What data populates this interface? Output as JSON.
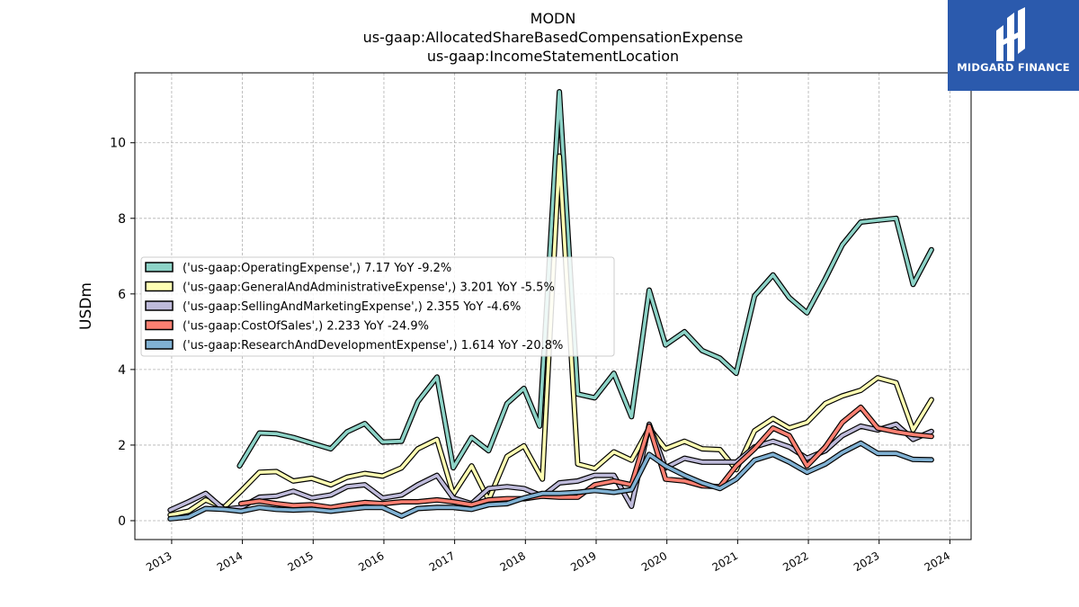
{
  "logo": {
    "text": "MIDGARD FINANCE"
  },
  "chart_data": {
    "type": "line",
    "title_lines": [
      "MODN",
      "us-gaap:AllocatedShareBasedCompensationExpense",
      "us-gaap:IncomeStatementLocation"
    ],
    "ylabel": "USDm",
    "xlim": [
      2012.48,
      2024.3
    ],
    "ylim": [
      -0.5,
      11.85
    ],
    "yticks": [
      0,
      2,
      4,
      6,
      8,
      10
    ],
    "xticks": [
      2013,
      2014,
      2015,
      2016,
      2017,
      2018,
      2019,
      2020,
      2021,
      2022,
      2023,
      2024
    ],
    "grid": true,
    "legend_position": "center-left",
    "series": [
      {
        "name": "('us-gaap:OperatingExpense',) 7.17 YoY -9.2%",
        "color": "#8dd3c7",
        "points": [
          [
            2013.96,
            1.45
          ],
          [
            2014.24,
            2.32
          ],
          [
            2014.48,
            2.3
          ],
          [
            2014.72,
            2.2
          ],
          [
            2014.98,
            2.05
          ],
          [
            2015.25,
            1.9
          ],
          [
            2015.48,
            2.35
          ],
          [
            2015.73,
            2.57
          ],
          [
            2015.98,
            2.08
          ],
          [
            2016.25,
            2.1
          ],
          [
            2016.48,
            3.15
          ],
          [
            2016.75,
            3.8
          ],
          [
            2016.98,
            1.4
          ],
          [
            2017.24,
            2.2
          ],
          [
            2017.48,
            1.85
          ],
          [
            2017.74,
            3.1
          ],
          [
            2017.98,
            3.5
          ],
          [
            2018.2,
            2.5
          ],
          [
            2018.48,
            11.35
          ],
          [
            2018.74,
            3.35
          ],
          [
            2018.98,
            3.25
          ],
          [
            2019.25,
            3.9
          ],
          [
            2019.5,
            2.75
          ],
          [
            2019.75,
            6.1
          ],
          [
            2019.98,
            4.65
          ],
          [
            2020.25,
            5.0
          ],
          [
            2020.5,
            4.5
          ],
          [
            2020.75,
            4.3
          ],
          [
            2020.98,
            3.9
          ],
          [
            2021.24,
            5.95
          ],
          [
            2021.5,
            6.5
          ],
          [
            2021.73,
            5.9
          ],
          [
            2021.98,
            5.5
          ],
          [
            2022.24,
            6.4
          ],
          [
            2022.48,
            7.3
          ],
          [
            2022.74,
            7.9
          ],
          [
            2022.98,
            7.95
          ],
          [
            2023.24,
            8.0
          ],
          [
            2023.48,
            6.25
          ],
          [
            2023.74,
            7.17
          ]
        ]
      },
      {
        "name": "('us-gaap:GeneralAndAdministrativeExpense',) 3.201 YoY -5.5%",
        "color": "#ffffb3",
        "points": [
          [
            2012.98,
            0.15
          ],
          [
            2013.24,
            0.25
          ],
          [
            2013.48,
            0.55
          ],
          [
            2013.74,
            0.35
          ],
          [
            2013.98,
            0.78
          ],
          [
            2014.24,
            1.28
          ],
          [
            2014.48,
            1.3
          ],
          [
            2014.72,
            1.05
          ],
          [
            2014.98,
            1.12
          ],
          [
            2015.25,
            0.95
          ],
          [
            2015.48,
            1.15
          ],
          [
            2015.73,
            1.25
          ],
          [
            2015.98,
            1.18
          ],
          [
            2016.25,
            1.4
          ],
          [
            2016.48,
            1.9
          ],
          [
            2016.75,
            2.15
          ],
          [
            2016.98,
            0.7
          ],
          [
            2017.24,
            1.45
          ],
          [
            2017.48,
            0.55
          ],
          [
            2017.74,
            1.7
          ],
          [
            2017.98,
            1.98
          ],
          [
            2018.24,
            1.1
          ],
          [
            2018.48,
            9.65
          ],
          [
            2018.74,
            1.5
          ],
          [
            2018.98,
            1.38
          ],
          [
            2019.25,
            1.82
          ],
          [
            2019.5,
            1.6
          ],
          [
            2019.75,
            2.45
          ],
          [
            2019.98,
            1.9
          ],
          [
            2020.25,
            2.1
          ],
          [
            2020.5,
            1.9
          ],
          [
            2020.75,
            1.88
          ],
          [
            2020.98,
            1.35
          ],
          [
            2021.24,
            2.38
          ],
          [
            2021.5,
            2.7
          ],
          [
            2021.73,
            2.45
          ],
          [
            2021.98,
            2.6
          ],
          [
            2022.24,
            3.1
          ],
          [
            2022.48,
            3.3
          ],
          [
            2022.74,
            3.45
          ],
          [
            2022.98,
            3.78
          ],
          [
            2023.24,
            3.65
          ],
          [
            2023.48,
            2.4
          ],
          [
            2023.74,
            3.2
          ]
        ]
      },
      {
        "name": "('us-gaap:SellingAndMarketingExpense',) 2.355 YoY -4.6%",
        "color": "#bebada",
        "points": [
          [
            2012.98,
            0.28
          ],
          [
            2013.24,
            0.5
          ],
          [
            2013.48,
            0.72
          ],
          [
            2013.74,
            0.3
          ],
          [
            2013.98,
            0.35
          ],
          [
            2014.24,
            0.62
          ],
          [
            2014.48,
            0.65
          ],
          [
            2014.72,
            0.78
          ],
          [
            2014.98,
            0.6
          ],
          [
            2015.25,
            0.68
          ],
          [
            2015.48,
            0.9
          ],
          [
            2015.73,
            0.95
          ],
          [
            2015.98,
            0.6
          ],
          [
            2016.25,
            0.68
          ],
          [
            2016.48,
            0.95
          ],
          [
            2016.75,
            1.2
          ],
          [
            2016.98,
            0.6
          ],
          [
            2017.24,
            0.45
          ],
          [
            2017.48,
            0.85
          ],
          [
            2017.74,
            0.9
          ],
          [
            2017.98,
            0.85
          ],
          [
            2018.24,
            0.65
          ],
          [
            2018.48,
            1.0
          ],
          [
            2018.74,
            1.05
          ],
          [
            2018.98,
            1.2
          ],
          [
            2019.25,
            1.2
          ],
          [
            2019.5,
            0.38
          ],
          [
            2019.75,
            2.55
          ],
          [
            2019.98,
            1.4
          ],
          [
            2020.25,
            1.65
          ],
          [
            2020.5,
            1.55
          ],
          [
            2020.75,
            1.55
          ],
          [
            2020.98,
            1.55
          ],
          [
            2021.24,
            1.95
          ],
          [
            2021.5,
            2.1
          ],
          [
            2021.73,
            1.95
          ],
          [
            2021.98,
            1.65
          ],
          [
            2022.24,
            1.85
          ],
          [
            2022.48,
            2.25
          ],
          [
            2022.74,
            2.5
          ],
          [
            2022.98,
            2.4
          ],
          [
            2023.24,
            2.55
          ],
          [
            2023.48,
            2.15
          ],
          [
            2023.74,
            2.36
          ]
        ]
      },
      {
        "name": "('us-gaap:CostOfSales',) 2.233 YoY -24.9%",
        "color": "#fb8072",
        "points": [
          [
            2013.98,
            0.45
          ],
          [
            2014.24,
            0.52
          ],
          [
            2014.48,
            0.45
          ],
          [
            2014.72,
            0.4
          ],
          [
            2014.98,
            0.42
          ],
          [
            2015.25,
            0.35
          ],
          [
            2015.48,
            0.42
          ],
          [
            2015.73,
            0.48
          ],
          [
            2015.98,
            0.45
          ],
          [
            2016.25,
            0.5
          ],
          [
            2016.48,
            0.5
          ],
          [
            2016.75,
            0.55
          ],
          [
            2016.98,
            0.5
          ],
          [
            2017.24,
            0.42
          ],
          [
            2017.48,
            0.55
          ],
          [
            2017.74,
            0.58
          ],
          [
            2017.98,
            0.58
          ],
          [
            2018.24,
            0.65
          ],
          [
            2018.48,
            0.62
          ],
          [
            2018.74,
            0.62
          ],
          [
            2018.98,
            0.95
          ],
          [
            2019.25,
            1.05
          ],
          [
            2019.5,
            0.95
          ],
          [
            2019.75,
            2.5
          ],
          [
            2019.98,
            1.1
          ],
          [
            2020.25,
            1.05
          ],
          [
            2020.5,
            0.92
          ],
          [
            2020.75,
            0.9
          ],
          [
            2020.98,
            1.45
          ],
          [
            2021.24,
            1.9
          ],
          [
            2021.5,
            2.45
          ],
          [
            2021.73,
            2.25
          ],
          [
            2021.98,
            1.45
          ],
          [
            2022.24,
            1.95
          ],
          [
            2022.48,
            2.6
          ],
          [
            2022.74,
            3.0
          ],
          [
            2022.98,
            2.45
          ],
          [
            2023.24,
            2.35
          ],
          [
            2023.48,
            2.28
          ],
          [
            2023.74,
            2.23
          ]
        ]
      },
      {
        "name": "('us-gaap:ResearchAndDevelopmentExpense',) 1.614 YoY -20.8%",
        "color": "#80b1d3",
        "points": [
          [
            2012.98,
            0.05
          ],
          [
            2013.24,
            0.1
          ],
          [
            2013.48,
            0.32
          ],
          [
            2013.74,
            0.3
          ],
          [
            2013.98,
            0.25
          ],
          [
            2014.24,
            0.35
          ],
          [
            2014.48,
            0.3
          ],
          [
            2014.72,
            0.28
          ],
          [
            2014.98,
            0.3
          ],
          [
            2015.25,
            0.25
          ],
          [
            2015.48,
            0.3
          ],
          [
            2015.73,
            0.35
          ],
          [
            2015.98,
            0.35
          ],
          [
            2016.25,
            0.12
          ],
          [
            2016.48,
            0.32
          ],
          [
            2016.75,
            0.35
          ],
          [
            2016.98,
            0.35
          ],
          [
            2017.24,
            0.3
          ],
          [
            2017.48,
            0.42
          ],
          [
            2017.74,
            0.45
          ],
          [
            2017.98,
            0.6
          ],
          [
            2018.24,
            0.72
          ],
          [
            2018.48,
            0.72
          ],
          [
            2018.74,
            0.75
          ],
          [
            2018.98,
            0.8
          ],
          [
            2019.25,
            0.75
          ],
          [
            2019.5,
            0.82
          ],
          [
            2019.75,
            1.75
          ],
          [
            2019.98,
            1.45
          ],
          [
            2020.25,
            1.2
          ],
          [
            2020.5,
            1.0
          ],
          [
            2020.75,
            0.85
          ],
          [
            2020.98,
            1.1
          ],
          [
            2021.24,
            1.6
          ],
          [
            2021.5,
            1.75
          ],
          [
            2021.73,
            1.55
          ],
          [
            2021.98,
            1.28
          ],
          [
            2022.24,
            1.5
          ],
          [
            2022.48,
            1.8
          ],
          [
            2022.74,
            2.05
          ],
          [
            2022.98,
            1.78
          ],
          [
            2023.24,
            1.78
          ],
          [
            2023.48,
            1.62
          ],
          [
            2023.74,
            1.61
          ]
        ]
      }
    ]
  }
}
